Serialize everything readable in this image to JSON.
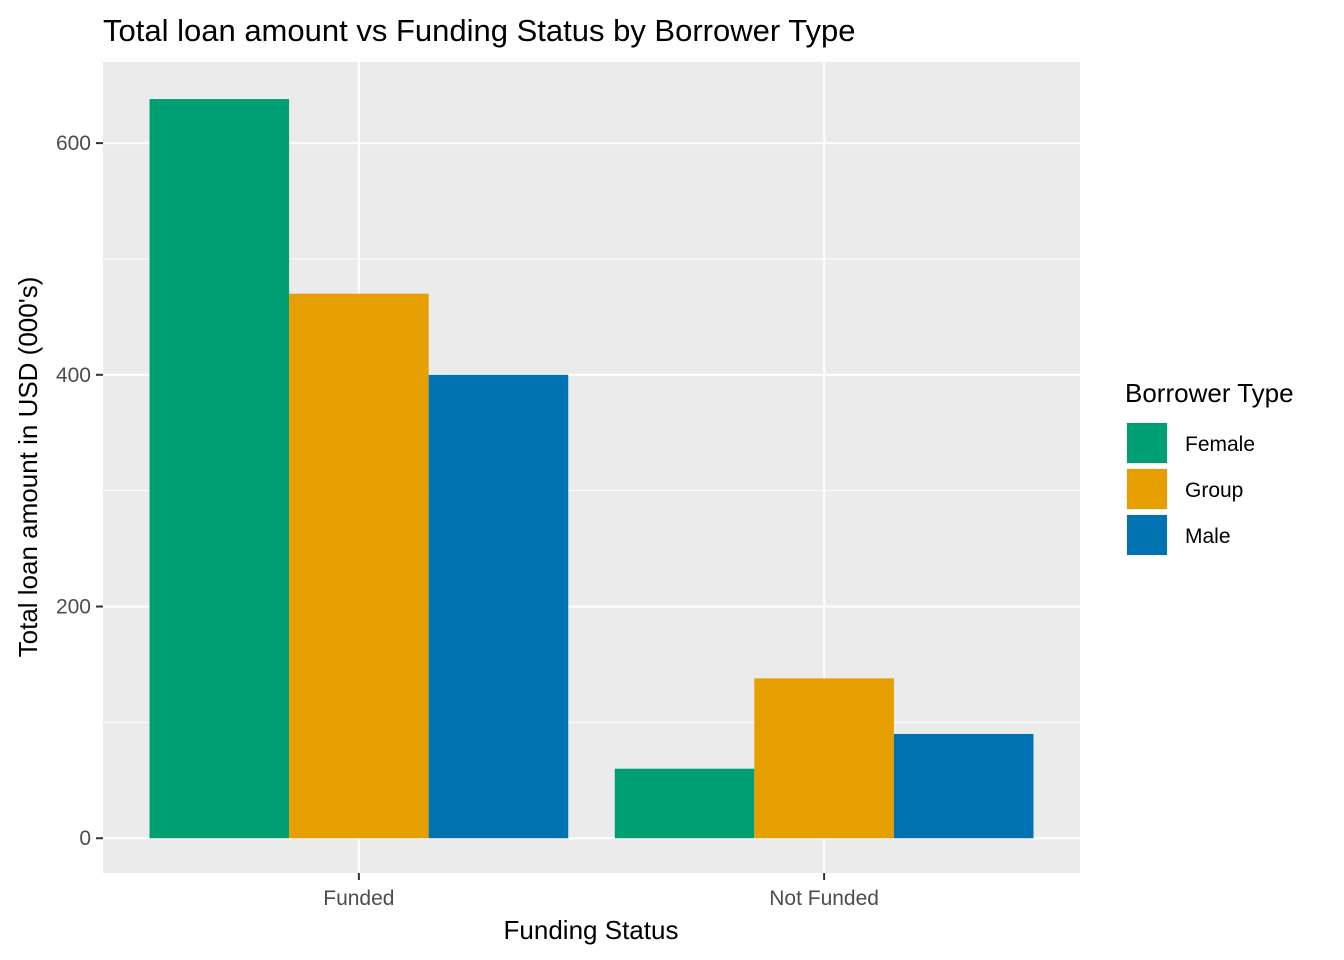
{
  "chart_data": {
    "type": "bar",
    "title": "Total loan amount vs Funding Status by Borrower Type",
    "xlabel": "Funding Status",
    "ylabel": "Total loan amount in USD (000's)",
    "categories": [
      "Funded",
      "Not Funded"
    ],
    "series": [
      {
        "name": "Female",
        "values": [
          638,
          60
        ],
        "color": "#009E73"
      },
      {
        "name": "Group",
        "values": [
          470,
          138
        ],
        "color": "#E69F00"
      },
      {
        "name": "Male",
        "values": [
          400,
          90
        ],
        "color": "#0072B2"
      }
    ],
    "ylim": [
      -30,
      670
    ],
    "yticks": [
      0,
      200,
      400,
      600
    ],
    "yminor": [
      100,
      300,
      500
    ],
    "grid": true,
    "legend": {
      "title": "Borrower Type",
      "placement": "right"
    },
    "panel_background": "#EBEBEB",
    "grid_color": "#FFFFFF"
  }
}
